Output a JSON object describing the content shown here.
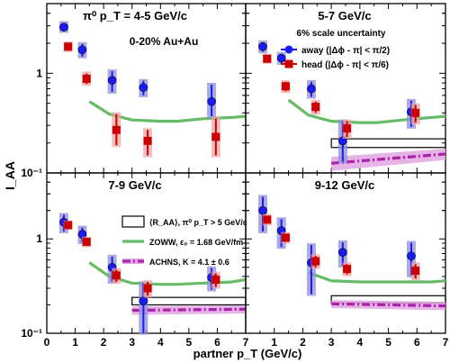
{
  "figure": {
    "xlabel": "partner p_T (GeV/c)",
    "ylabel": "I_AA",
    "xlim": [
      0,
      7
    ],
    "ylim": [
      0.1,
      5
    ],
    "log_y": true,
    "x_ticks": [
      0,
      1,
      2,
      3,
      4,
      5,
      6,
      7
    ],
    "y_ticks": [
      0.1,
      1
    ],
    "y_tick_labels": [
      "10⁻¹",
      "1"
    ],
    "series_colors": {
      "away": "#1a1aff",
      "head": "#cc0000",
      "zoww": "#66bb66",
      "achns": "#aa22aa",
      "syst_box": "#8f8fd6"
    }
  },
  "chart_data": [
    {
      "type": "scatter",
      "panel": "top-left",
      "title": "π⁰ p_T = 4-5 GeV/c",
      "annotations": [
        "0-20% Au+Au"
      ],
      "series": [
        {
          "key": "away",
          "x": [
            0.6,
            1.25,
            2.3,
            3.4,
            5.8
          ],
          "y": [
            2.9,
            1.72,
            0.85,
            0.72,
            0.52
          ],
          "yerr_low": [
            0.25,
            0.25,
            0.2,
            0.12,
            0.15
          ],
          "yerr_high": [
            0.3,
            0.25,
            0.2,
            0.12,
            0.25
          ]
        },
        {
          "key": "head",
          "x": [
            0.75,
            1.4,
            2.45,
            3.55,
            5.95
          ],
          "y": [
            1.85,
            0.88,
            0.27,
            0.21,
            0.23
          ],
          "yerr_low": [
            0.15,
            0.1,
            0.08,
            0.06,
            0.08
          ],
          "yerr_high": [
            0.15,
            0.12,
            0.12,
            0.06,
            0.12
          ]
        }
      ],
      "zoww": {
        "x": [
          1.5,
          2.2,
          3,
          4,
          4.6,
          5.5,
          6.5,
          7
        ],
        "y": [
          0.52,
          0.39,
          0.34,
          0.33,
          0.33,
          0.35,
          0.36,
          0.37
        ]
      }
    },
    {
      "type": "scatter",
      "panel": "top-right",
      "title": "5-7 GeV/c",
      "annotations": [
        "6% scale uncertainty"
      ],
      "legend": [
        {
          "key": "away",
          "label": "away (|Δϕ - π| < π/2)"
        },
        {
          "key": "head",
          "label": "head (|Δϕ - π| < π/6)"
        }
      ],
      "series": [
        {
          "key": "away",
          "x": [
            0.6,
            1.25,
            2.3,
            3.4,
            5.8
          ],
          "y": [
            1.85,
            1.42,
            0.7,
            0.21,
            0.41
          ],
          "yerr_low": [
            0.2,
            0.15,
            0.12,
            0.08,
            0.12
          ],
          "yerr_high": [
            0.2,
            0.15,
            0.12,
            0.12,
            0.12
          ]
        },
        {
          "key": "head",
          "x": [
            0.75,
            1.4,
            2.45,
            3.55,
            5.95
          ],
          "y": [
            1.4,
            0.74,
            0.46,
            0.28,
            0.4
          ],
          "yerr_low": [
            0.1,
            0.08,
            0.06,
            0.05,
            0.08
          ],
          "yerr_high": [
            0.1,
            0.08,
            0.06,
            0.05,
            0.08
          ]
        }
      ],
      "zoww": {
        "x": [
          1.5,
          2.2,
          3,
          4,
          4.6,
          5.5,
          6.5,
          7
        ],
        "y": [
          0.54,
          0.38,
          0.33,
          0.32,
          0.32,
          0.34,
          0.36,
          0.37
        ]
      },
      "achns": {
        "x": [
          3,
          7
        ],
        "y": [
          0.125,
          0.155
        ],
        "band": 0.02
      },
      "ref_box": {
        "x": [
          3,
          7
        ],
        "y": [
          0.18,
          0.22
        ]
      }
    },
    {
      "type": "scatter",
      "panel": "bottom-left",
      "title": "7-9 GeV/c",
      "legend": [
        {
          "key": "ref_box",
          "label": "⟨R_AA⟩, π⁰ p_T > 5 GeV/c"
        },
        {
          "key": "zoww",
          "label": "ZOWW, ε₀ = 1.68 GeV/fm"
        },
        {
          "key": "achns",
          "label": "ACHNS, K = 4.1 ± 0.6"
        }
      ],
      "series": [
        {
          "key": "away",
          "x": [
            0.6,
            1.25,
            2.3,
            3.4,
            5.8
          ],
          "y": [
            1.5,
            1.12,
            0.5,
            0.22,
            0.39
          ],
          "yerr_low": [
            0.3,
            0.2,
            0.15,
            0.12,
            0.1
          ],
          "yerr_high": [
            0.3,
            0.2,
            0.15,
            0.12,
            0.1
          ]
        },
        {
          "key": "head",
          "x": [
            0.75,
            1.4,
            2.45,
            3.55,
            5.95
          ],
          "y": [
            1.4,
            0.93,
            0.41,
            0.3,
            0.37
          ],
          "yerr_low": [
            0.1,
            0.08,
            0.06,
            0.05,
            0.06
          ],
          "yerr_high": [
            0.1,
            0.08,
            0.06,
            0.05,
            0.06
          ]
        }
      ],
      "zoww": {
        "x": [
          1.5,
          2.2,
          3,
          4,
          4.6,
          5.5,
          6.5,
          7
        ],
        "y": [
          0.56,
          0.4,
          0.34,
          0.33,
          0.33,
          0.34,
          0.35,
          0.37
        ]
      },
      "achns": {
        "x": [
          3,
          7
        ],
        "y": [
          0.175,
          0.18
        ],
        "band": 0.018
      },
      "ref_box": {
        "x": [
          3,
          7
        ],
        "y": [
          0.2,
          0.24
        ]
      }
    },
    {
      "type": "scatter",
      "panel": "bottom-right",
      "title": "9-12 GeV/c",
      "series": [
        {
          "key": "away",
          "x": [
            0.6,
            1.25,
            2.3,
            3.4,
            5.8
          ],
          "y": [
            2.0,
            1.22,
            0.56,
            0.72,
            0.66
          ],
          "yerr_low": [
            0.8,
            0.4,
            0.3,
            0.2,
            0.25
          ],
          "yerr_high": [
            0.8,
            0.4,
            0.3,
            0.2,
            0.25
          ]
        },
        {
          "key": "head",
          "x": [
            0.75,
            1.4,
            2.45,
            3.55,
            5.95
          ],
          "y": [
            1.6,
            1.03,
            0.58,
            0.48,
            0.46
          ],
          "yerr_low": [
            0.15,
            0.1,
            0.08,
            0.06,
            0.08
          ],
          "yerr_high": [
            0.15,
            0.1,
            0.08,
            0.06,
            0.08
          ]
        }
      ],
      "zoww": {
        "x": [
          2.2,
          3,
          4,
          4.6,
          5.5,
          6.5,
          7
        ],
        "y": [
          0.44,
          0.36,
          0.35,
          0.35,
          0.35,
          0.35,
          0.36
        ]
      },
      "achns": {
        "x": [
          3,
          7
        ],
        "y": [
          0.205,
          0.195
        ],
        "band": 0.02
      },
      "ref_box": {
        "x": [
          3,
          7
        ],
        "y": [
          0.21,
          0.25
        ]
      }
    }
  ]
}
